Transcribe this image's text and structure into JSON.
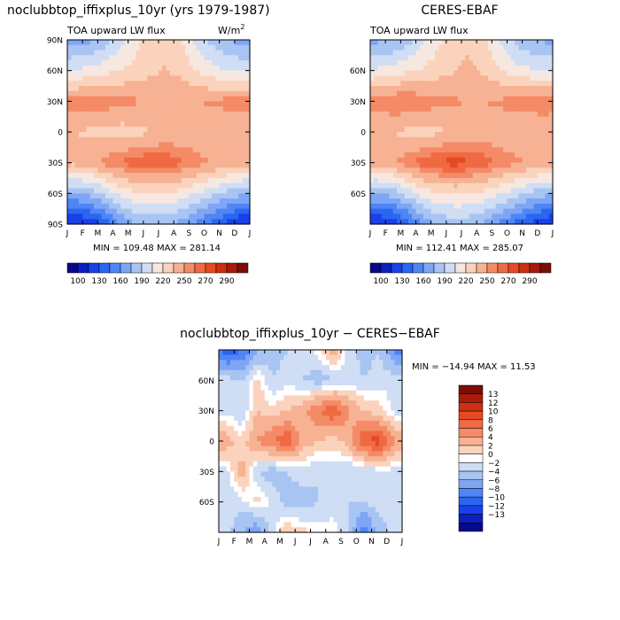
{
  "chart_data": [
    {
      "type": "heatmap",
      "title": "noclubbtop_iffixplus_10yr (yrs 1979-1987)",
      "subtitle": "TOA upward LW flux",
      "units_prefix": "W/m",
      "units_exp": "2",
      "x_ticks": [
        "J",
        "F",
        "M",
        "A",
        "M",
        "J",
        "J",
        "A",
        "S",
        "O",
        "N",
        "D",
        "J"
      ],
      "y_ticks": [
        "90N",
        "60N",
        "30N",
        "0",
        "30S",
        "60S",
        "90S"
      ],
      "ylim": [
        -90,
        90
      ],
      "stats": "MIN = 109.48 MAX = 281.14",
      "colorbar_labels": [
        "100",
        "130",
        "160",
        "190",
        "220",
        "250",
        "270",
        "290"
      ],
      "colors": [
        "#08088a",
        "#0c1fbf",
        "#1a40e8",
        "#2a66f0",
        "#4f86f5",
        "#7fa6f5",
        "#a8c4f2",
        "#cfddf5",
        "#f6e8e0",
        "#fbd3bd",
        "#f7b294",
        "#f48b66",
        "#ef6a43",
        "#e64a23",
        "#cc2f12",
        "#a81a0a",
        "#7a0d05"
      ],
      "data": {
        "lat": [
          -90,
          -60,
          -30,
          0,
          30,
          60,
          90
        ],
        "rows": [
          [
            110,
            118,
            135,
            160,
            175,
            180,
            178,
            170,
            155,
            140,
            125,
            112
          ],
          [
            175,
            180,
            195,
            210,
            218,
            220,
            220,
            215,
            205,
            195,
            185,
            178
          ],
          [
            240,
            245,
            255,
            262,
            268,
            270,
            268,
            262,
            255,
            250,
            245,
            242
          ],
          [
            235,
            232,
            230,
            228,
            230,
            235,
            238,
            240,
            240,
            238,
            236,
            236
          ],
          [
            255,
            258,
            258,
            255,
            252,
            250,
            248,
            248,
            250,
            252,
            255,
            256
          ],
          [
            205,
            210,
            215,
            220,
            225,
            232,
            236,
            230,
            220,
            210,
            205,
            203
          ],
          [
            170,
            172,
            182,
            200,
            215,
            228,
            230,
            220,
            200,
            185,
            175,
            170
          ]
        ]
      }
    },
    {
      "type": "heatmap",
      "title": "CERES-EBAF",
      "subtitle": "TOA upward LW flux",
      "x_ticks": [
        "J",
        "F",
        "M",
        "A",
        "M",
        "J",
        "J",
        "A",
        "S",
        "O",
        "N",
        "D",
        "J"
      ],
      "y_ticks": [
        "60N",
        "30N",
        "0",
        "30S",
        "60S"
      ],
      "ylim": [
        -90,
        90
      ],
      "stats": "MIN = 112.41 MAX = 285.07",
      "colorbar_labels": [
        "100",
        "130",
        "160",
        "190",
        "220",
        "250",
        "270",
        "290"
      ],
      "colors": [
        "#08088a",
        "#0c1fbf",
        "#1a40e8",
        "#2a66f0",
        "#4f86f5",
        "#7fa6f5",
        "#a8c4f2",
        "#cfddf5",
        "#f6e8e0",
        "#fbd3bd",
        "#f7b294",
        "#f48b66",
        "#ef6a43",
        "#e64a23",
        "#cc2f12",
        "#a81a0a",
        "#7a0d05"
      ],
      "data": {
        "lat": [
          -90,
          -60,
          -30,
          0,
          30,
          60,
          90
        ],
        "rows": [
          [
            112,
            120,
            137,
            162,
            177,
            182,
            180,
            172,
            157,
            142,
            127,
            114
          ],
          [
            177,
            182,
            197,
            212,
            220,
            222,
            222,
            217,
            207,
            197,
            187,
            180
          ],
          [
            243,
            248,
            258,
            266,
            272,
            275,
            272,
            266,
            258,
            253,
            248,
            245
          ],
          [
            236,
            234,
            232,
            230,
            232,
            237,
            240,
            242,
            242,
            240,
            238,
            238
          ],
          [
            258,
            262,
            262,
            258,
            254,
            252,
            250,
            250,
            252,
            255,
            258,
            259
          ],
          [
            208,
            212,
            218,
            222,
            228,
            234,
            238,
            232,
            222,
            212,
            207,
            205
          ],
          [
            172,
            174,
            184,
            202,
            217,
            230,
            232,
            222,
            202,
            187,
            177,
            172
          ]
        ]
      }
    },
    {
      "type": "heatmap",
      "title": "noclubbtop_iffixplus_10yr − CERES−EBAF",
      "x_ticks": [
        "J",
        "F",
        "M",
        "A",
        "M",
        "J",
        "J",
        "A",
        "S",
        "O",
        "N",
        "D",
        "J"
      ],
      "y_ticks": [
        "60N",
        "30N",
        "0",
        "30S",
        "60S"
      ],
      "ylim": [
        -90,
        90
      ],
      "stats": "MIN = −14.94 MAX =  11.53",
      "colorbar_labels": [
        "13",
        "12",
        "10",
        "8",
        "6",
        "4",
        "2",
        "0",
        "−2",
        "−4",
        "−6",
        "−8",
        "−10",
        "−12",
        "−13"
      ],
      "colors": [
        "#7a0d05",
        "#a81a0a",
        "#cc2f12",
        "#e64a23",
        "#ef6a43",
        "#f48b66",
        "#f7b294",
        "#fbd3bd",
        "#ffffff",
        "#cfddf5",
        "#a8c4f2",
        "#7fa6f5",
        "#4f86f5",
        "#2a66f0",
        "#1a40e8",
        "#0c1fbf",
        "#08088a"
      ],
      "data": {
        "lat": [
          -90,
          -60,
          -30,
          0,
          30,
          60,
          90
        ],
        "rows": [
          [
            -1,
            -4,
            -6,
            -1,
            2,
            1,
            0,
            0,
            -2,
            -8,
            -3,
            -1
          ],
          [
            -2,
            -1,
            1,
            -1,
            -3,
            -3,
            -2,
            -1,
            -2,
            -2,
            -1,
            -2
          ],
          [
            -1,
            3,
            -2,
            -3,
            -2,
            -1,
            -2,
            -1,
            -2,
            -2,
            -1,
            -1
          ],
          [
            3,
            1,
            4,
            6,
            8,
            3,
            2,
            1,
            3,
            8,
            9,
            4
          ],
          [
            -1,
            -2,
            2,
            1,
            2,
            3,
            6,
            8,
            4,
            2,
            1,
            -1
          ],
          [
            -1,
            -2,
            1,
            -2,
            -1,
            -2,
            -3,
            -2,
            -1,
            -2,
            -1,
            -1
          ],
          [
            -10,
            -8,
            -4,
            -3,
            -2,
            -1,
            0,
            3,
            -1,
            -3,
            -2,
            -6
          ]
        ]
      }
    }
  ]
}
